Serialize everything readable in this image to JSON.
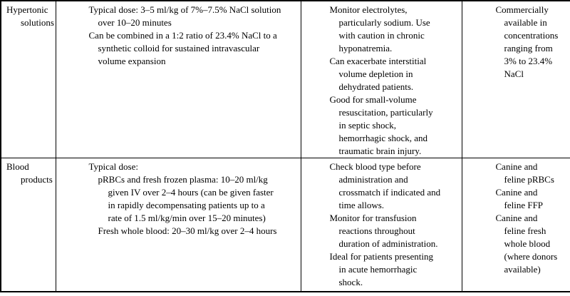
{
  "document": {
    "kind": "table-page",
    "background_color": "#ffffff",
    "text_color": "#000000",
    "border_color": "#000000"
  },
  "table": {
    "column_roles": [
      "fluid-type",
      "typical-dose",
      "monitoring-notes",
      "availability"
    ],
    "rows": [
      {
        "name": "hypertonic-solutions",
        "cells": [
          {
            "lines": [
              {
                "i": 0,
                "t": "Hypertonic"
              },
              {
                "i": 1,
                "t": "solutions"
              }
            ]
          },
          {
            "lines": [
              {
                "i": 0,
                "t": "Typical dose: 3–5 ml/kg of 7%–7.5% NaCl solution"
              },
              {
                "i": 1,
                "t": "over 10–20 minutes"
              },
              {
                "i": 0,
                "t": "Can be combined in a 1:2 ratio of 23.4% NaCl to a"
              },
              {
                "i": 1,
                "t": "synthetic colloid for sustained intravascular"
              },
              {
                "i": 1,
                "t": "volume expansion"
              }
            ]
          },
          {
            "lines": [
              {
                "i": 0,
                "t": "Monitor electrolytes,"
              },
              {
                "i": 1,
                "t": "particularly sodium. Use"
              },
              {
                "i": 1,
                "t": "with caution in chronic"
              },
              {
                "i": 1,
                "t": "hyponatremia."
              },
              {
                "i": 0,
                "t": "Can exacerbate interstitial"
              },
              {
                "i": 1,
                "t": "volume depletion in"
              },
              {
                "i": 1,
                "t": "dehydrated patients."
              },
              {
                "i": 0,
                "t": "Good for small-volume"
              },
              {
                "i": 1,
                "t": "resuscitation, particularly"
              },
              {
                "i": 1,
                "t": "in septic shock,"
              },
              {
                "i": 1,
                "t": "hemorrhagic shock, and"
              },
              {
                "i": 1,
                "t": "traumatic brain injury."
              }
            ]
          },
          {
            "lines": [
              {
                "i": 0,
                "t": "Commercially"
              },
              {
                "i": 1,
                "t": "available in"
              },
              {
                "i": 1,
                "t": "concentrations"
              },
              {
                "i": 1,
                "t": "ranging from"
              },
              {
                "i": 1,
                "t": "3% to 23.4%"
              },
              {
                "i": 1,
                "t": "NaCl"
              }
            ]
          }
        ]
      },
      {
        "name": "blood-products",
        "cells": [
          {
            "lines": [
              {
                "i": 0,
                "t": "Blood"
              },
              {
                "i": 1,
                "t": "products"
              }
            ]
          },
          {
            "lines": [
              {
                "i": 0,
                "t": "Typical dose:"
              },
              {
                "i": 1,
                "t": "pRBCs and fresh frozen plasma: 10–20 ml/kg"
              },
              {
                "i": 2,
                "t": "given IV over 2–4 hours (can be given faster"
              },
              {
                "i": 2,
                "t": "in rapidly decompensating patients up to a"
              },
              {
                "i": 2,
                "t": "rate of 1.5 ml/kg/min over 15–20 minutes)"
              },
              {
                "i": 1,
                "t": "Fresh whole blood: 20–30 ml/kg over 2–4 hours"
              }
            ]
          },
          {
            "lines": [
              {
                "i": 0,
                "t": "Check blood type before"
              },
              {
                "i": 1,
                "t": "administration and"
              },
              {
                "i": 1,
                "t": "crossmatch if indicated and"
              },
              {
                "i": 1,
                "t": "time allows."
              },
              {
                "i": 0,
                "t": "Monitor for transfusion"
              },
              {
                "i": 1,
                "t": "reactions throughout"
              },
              {
                "i": 1,
                "t": "duration of administration."
              },
              {
                "i": 0,
                "t": "Ideal for patients presenting"
              },
              {
                "i": 1,
                "t": "in acute hemorrhagic"
              },
              {
                "i": 1,
                "t": "shock."
              }
            ]
          },
          {
            "lines": [
              {
                "i": 0,
                "t": "Canine and"
              },
              {
                "i": 1,
                "t": "feline pRBCs"
              },
              {
                "i": 0,
                "t": "Canine and"
              },
              {
                "i": 1,
                "t": "feline FFP"
              },
              {
                "i": 0,
                "t": "Canine and"
              },
              {
                "i": 1,
                "t": "feline fresh"
              },
              {
                "i": 1,
                "t": "whole blood"
              },
              {
                "i": 1,
                "t": "(where donors"
              },
              {
                "i": 1,
                "t": "available)"
              }
            ]
          }
        ]
      }
    ]
  }
}
